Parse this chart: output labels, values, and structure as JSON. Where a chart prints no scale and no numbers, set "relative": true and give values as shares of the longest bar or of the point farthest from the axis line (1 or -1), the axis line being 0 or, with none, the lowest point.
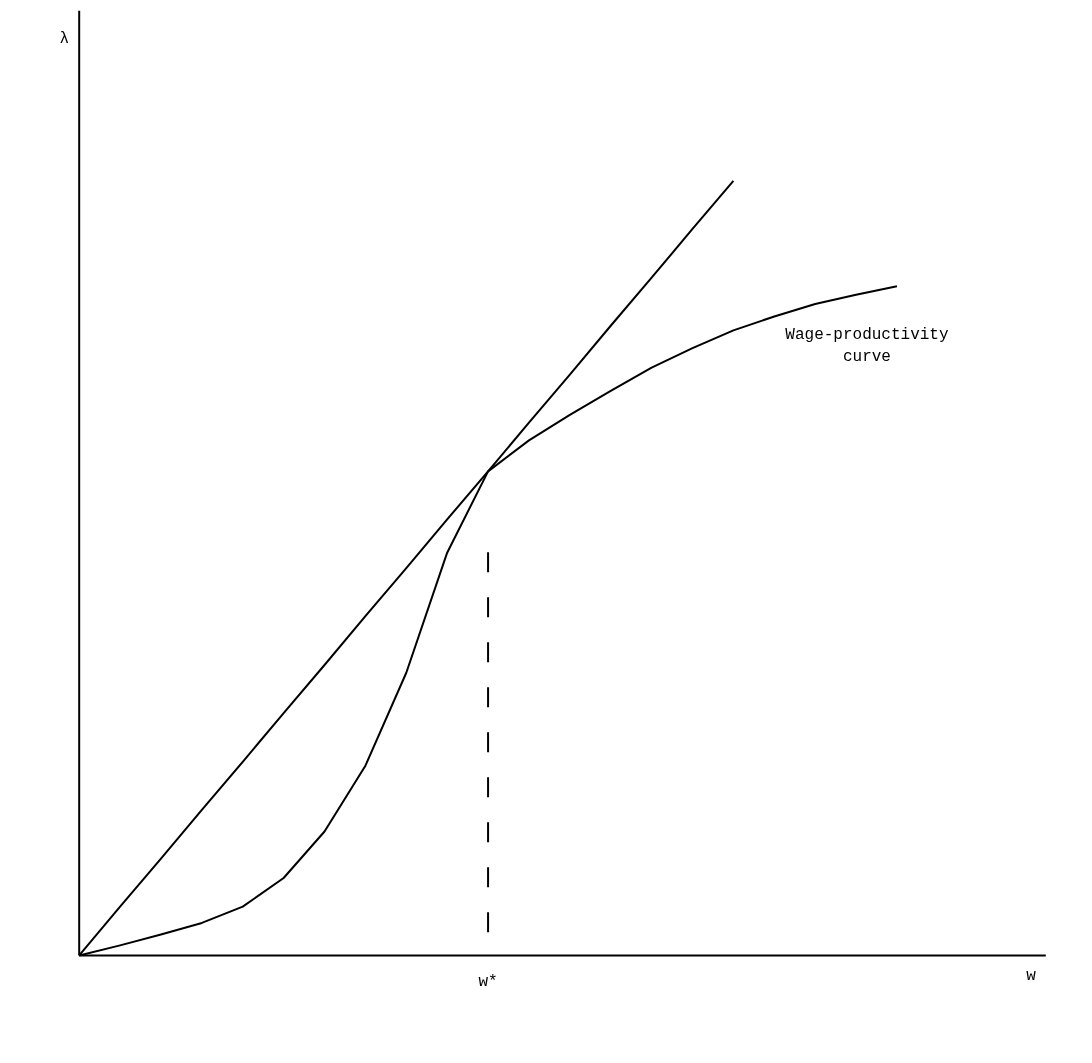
{
  "chart_data": {
    "type": "line",
    "relative": true,
    "categories": [
      null,
      null,
      null,
      null,
      null,
      null,
      null,
      null,
      null,
      null,
      null,
      null,
      null,
      null,
      null,
      null,
      null,
      null,
      null,
      null,
      null
    ],
    "grid": false,
    "legend": false,
    "marker": "none",
    "annotations": [
      "w*",
      "λ",
      "w"
    ],
    "series": [
      {
        "color": "#000000",
        "values": [
          0,
          0.063,
          0.125,
          0.188,
          0.25,
          0.313,
          0.375,
          0.438,
          0.5,
          0.563,
          0.625,
          0.688,
          0.75,
          0.813,
          0.875,
          0.938,
          1,
          null,
          null,
          null,
          null
        ]
      },
      {
        "name": "Wage-productivity curve",
        "color": "#000000",
        "values": [
          0,
          0.013,
          0.027,
          0.042,
          0.063,
          0.1,
          0.16,
          0.245,
          0.365,
          0.52,
          0.625,
          0.665,
          0.698,
          0.729,
          0.759,
          0.784,
          0.807,
          0.825,
          0.841,
          0.853,
          0.864
        ]
      }
    ]
  }
}
